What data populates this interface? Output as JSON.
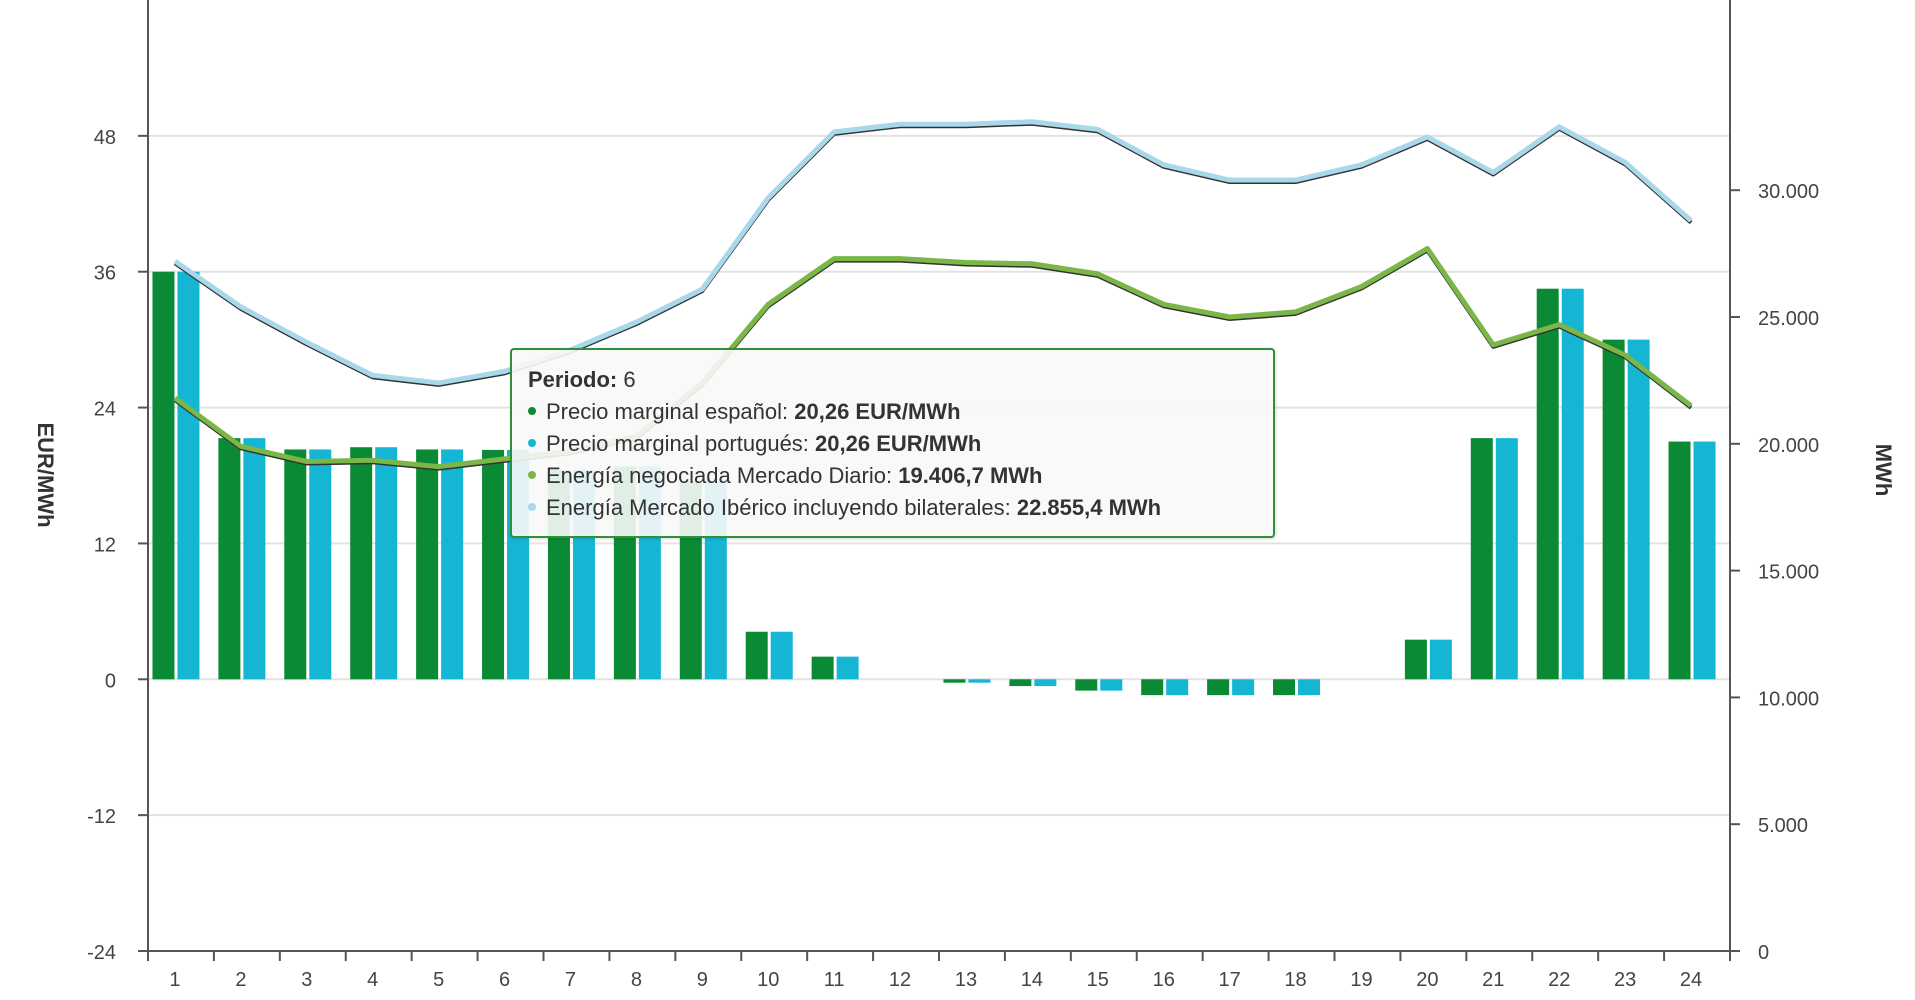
{
  "chart_data": {
    "type": "bar",
    "categories": [
      "1",
      "2",
      "3",
      "4",
      "5",
      "6",
      "7",
      "8",
      "9",
      "10",
      "11",
      "12",
      "13",
      "14",
      "15",
      "16",
      "17",
      "18",
      "19",
      "20",
      "21",
      "22",
      "23",
      "24"
    ],
    "ylabel": "EUR/MWh",
    "y2label": "MWh",
    "ylim": [
      -24,
      60
    ],
    "y2lim": [
      0,
      37500
    ],
    "yticks": [
      "48",
      "36",
      "24",
      "12",
      "0",
      "-12",
      "-24"
    ],
    "y2ticks": [
      "30.000",
      "25.000",
      "20.000",
      "15.000",
      "10.000",
      "5.000",
      "0"
    ],
    "grid": true,
    "series": [
      {
        "name": "Precio marginal español",
        "type": "bar",
        "axis": "left",
        "color": "#0a8a34",
        "values": [
          36,
          21.3,
          20.3,
          20.5,
          20.3,
          20.26,
          18.5,
          18.8,
          17.5,
          4.2,
          2,
          0,
          -0.3,
          -0.6,
          -1,
          -1.4,
          -1.4,
          -1.4,
          0,
          3.5,
          21.3,
          34.5,
          30,
          21
        ]
      },
      {
        "name": "Precio marginal portugués",
        "type": "bar",
        "axis": "right_none",
        "color": "#15b5d4",
        "values": [
          36,
          21.3,
          20.3,
          20.5,
          20.3,
          20.26,
          18.5,
          18.8,
          17.5,
          4.2,
          2,
          0,
          -0.3,
          -0.6,
          -1,
          -1.4,
          -1.4,
          -1.4,
          0,
          3.5,
          21.3,
          34.5,
          30,
          21
        ]
      },
      {
        "name": "Energía negociada Mercado Diario",
        "type": "line",
        "axis": "right",
        "color": "#7ab648",
        "values": [
          21800,
          19900,
          19300,
          19350,
          19100,
          19406.7,
          19700,
          20300,
          22400,
          25500,
          27300,
          27300,
          27150,
          27100,
          26700,
          25500,
          25000,
          25200,
          26200,
          27700,
          23900,
          24700,
          23500,
          21500
        ]
      },
      {
        "name": "Energía Mercado Ibérico incluyendo bilaterales",
        "type": "line",
        "axis": "right",
        "color": "#a8d8ea",
        "values": [
          27200,
          25400,
          24000,
          22700,
          22400,
          22855.4,
          23700,
          24800,
          26100,
          29700,
          32300,
          32600,
          32600,
          32700,
          32400,
          31000,
          30400,
          30400,
          31000,
          32100,
          30700,
          32500,
          31100,
          28800
        ]
      }
    ]
  },
  "tooltip": {
    "title_label": "Periodo:",
    "title_value": "6",
    "rows": [
      {
        "label": "Precio marginal español: ",
        "value": "20,26 EUR/MWh",
        "color": "#0a8a34"
      },
      {
        "label": "Precio marginal portugués: ",
        "value": "20,26 EUR/MWh",
        "color": "#15b5d4"
      },
      {
        "label": "Energía negociada Mercado Diario: ",
        "value": "19.406,7 MWh",
        "color": "#7ab648"
      },
      {
        "label": "Energía Mercado Ibérico incluyendo bilaterales: ",
        "value": "22.855,4 MWh",
        "color": "#a8d8ea"
      }
    ]
  }
}
